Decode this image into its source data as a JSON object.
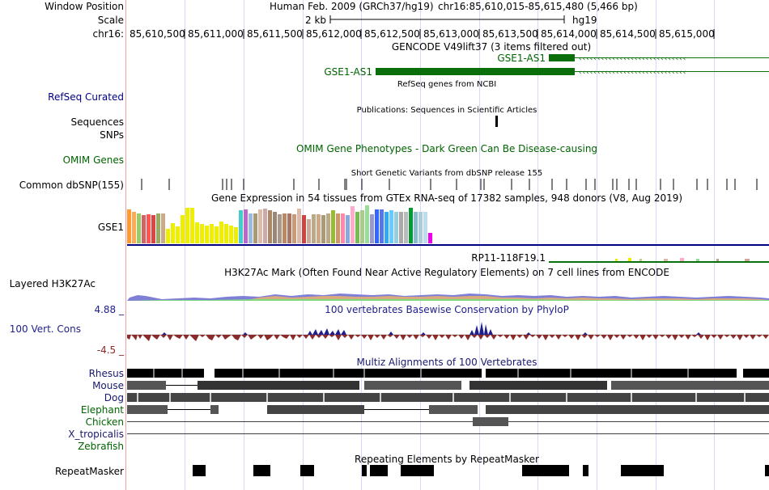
{
  "header": {
    "window_position_label": "Window Position",
    "scale_label": "Scale",
    "chrom_label": "chr16:",
    "assembly": "Human Feb. 2009 (GRCh37/hg19)",
    "position": "chr16:85,610,015-85,615,480 (5,466 bp)",
    "scale_value": "2 kb",
    "db": "hg19"
  },
  "ruler": {
    "ticks": [
      "85,610,500",
      "85,611,000",
      "85,611,500",
      "85,612,000",
      "85,612,500",
      "85,613,000",
      "85,613,500",
      "85,614,000",
      "85,614,500",
      "85,615,000"
    ]
  },
  "tracks": {
    "gencode": {
      "title": "GENCODE V49lift37 (3 items filtered out)",
      "gene1": "GSE1-AS1",
      "gene2": "GSE1-AS1"
    },
    "refseq": {
      "label": "RefSeq Curated",
      "title": "RefSeq genes from NCBI"
    },
    "publications": {
      "label": "Sequences",
      "title": "Publications: Sequences in Scientific Articles"
    },
    "snps": {
      "label": "SNPs"
    },
    "omim": {
      "label": "OMIM Genes",
      "title": "OMIM Gene Phenotypes - Dark Green Can Be Disease-causing"
    },
    "dbsnp": {
      "label": "Common dbSNP(155)",
      "title": "Short Genetic Variants from dbSNP release 155"
    },
    "gtex": {
      "title": "Gene Expression in 54 tissues from GTEx RNA-seq of 17382 samples, 948 donors (V8, Aug 2019)",
      "label": "GSE1",
      "gene2": "RP11-118F19.1"
    },
    "h3k27ac": {
      "label": "Layered H3K27Ac",
      "title": "H3K27Ac Mark (Often Found Near Active Regulatory Elements) on 7 cell lines from ENCODE"
    },
    "phylop": {
      "label": "100 Vert. Cons",
      "max": "4.88 _",
      "min": "-4.5 _",
      "title": "100 vertebrates Basewise Conservation by PhyloP"
    },
    "multiz": {
      "title": "Multiz Alignments of 100 Vertebrates",
      "species": [
        "Rhesus",
        "Mouse",
        "Dog",
        "Elephant",
        "Chicken",
        "X_tropicalis",
        "Zebrafish"
      ]
    },
    "repeatmasker": {
      "label": "RepeatMasker",
      "title": "Repeating Elements by RepeatMasker"
    }
  },
  "colors": {
    "gene_green": "#0a6e0a",
    "navy": "#000080",
    "phylop_red": "#8b2a2a",
    "phylop_blue": "#1e1e8c"
  }
}
